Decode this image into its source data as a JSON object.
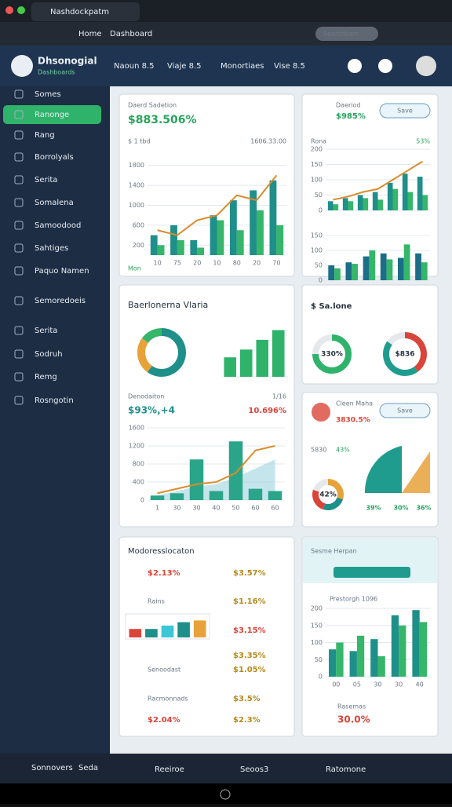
{
  "browser": {
    "tab_title": "Nashdockpatm",
    "nav": [
      "Home",
      "Dashboard"
    ],
    "search": "Searchbars"
  },
  "header": {
    "title": "Dhsonogial",
    "subtitle": "Dashboards",
    "tabs": [
      "Naoun 8.5",
      "Viaje 8.5",
      "Monortiaes",
      "Vise 8.5"
    ]
  },
  "sidebar": {
    "items": [
      "Somes",
      "Ranonge",
      "Rang",
      "Borrolyals",
      "Serita",
      "Somalena",
      "Samoodood",
      "Sahtiges",
      "Paquo Namen",
      "Semoredoeis",
      "Serita",
      "Sodruh",
      "Remg",
      "Rosngotin"
    ]
  },
  "cards": [
    {
      "title": "Daerd Sadetion",
      "value": "$883.506%",
      "meta_left": "$ 1 tbd",
      "meta_right": "1606.33.00",
      "footer": "Mon",
      "chart": {
        "type": "bar",
        "categories": [
          "10",
          "75",
          "20",
          "10",
          "80",
          "20",
          "70"
        ],
        "ylim": [
          0,
          2000
        ],
        "yticks": [
          200,
          600,
          1000,
          1400,
          1800
        ],
        "series": [
          {
            "type": "bar",
            "color": "#1f8f8a",
            "values": [
              400,
              600,
              300,
              800,
              1100,
              1300,
              1500
            ]
          },
          {
            "type": "bar",
            "color": "#35b66a",
            "values": [
              200,
              300,
              150,
              700,
              500,
              900,
              600
            ]
          },
          {
            "type": "line",
            "color": "#d98c2b",
            "values": [
              500,
              400,
              700,
              800,
              1200,
              1100,
              1600
            ]
          }
        ]
      }
    },
    {
      "title": "Daeriod",
      "value": "$985%",
      "button": "Save",
      "meta_left": "Rona",
      "meta_right": "53%",
      "chart": {
        "type": "bar",
        "ylim": [
          0,
          200
        ],
        "yticks": [
          0,
          50,
          100,
          150,
          200
        ],
        "series": [
          {
            "type": "bar",
            "color": "#1f8f8a",
            "values": [
              30,
              40,
              50,
              60,
              90,
              120,
              110
            ]
          },
          {
            "type": "bar",
            "color": "#35b66a",
            "values": [
              20,
              30,
              40,
              35,
              70,
              60,
              50
            ]
          },
          {
            "type": "line",
            "color": "#d98c2b",
            "values": [
              35,
              45,
              60,
              70,
              100,
              130,
              160
            ]
          }
        ]
      },
      "chart2": {
        "type": "bar",
        "ylim": [
          0,
          150
        ],
        "yticks": [
          0,
          50,
          100,
          150
        ],
        "series": [
          {
            "type": "bar",
            "color": "#1b6e86",
            "values": [
              50,
              60,
              80,
              90,
              75,
              90
            ]
          },
          {
            "type": "bar",
            "color": "#35b66a",
            "values": [
              40,
              55,
              100,
              70,
              120,
              60
            ]
          }
        ]
      }
    },
    {
      "title": "Baerlonerna Vlaria",
      "donut": {
        "values": [
          60,
          25,
          15
        ],
        "colors": [
          "#1f8f8a",
          "#e8a23a",
          "#35b66a"
        ]
      },
      "bars": {
        "ylim": [
          0,
          50
        ],
        "values": [
          20,
          28,
          38,
          48
        ],
        "color": "#2fb36b"
      },
      "sub_title": "Denodaiton",
      "sub_meta": "1/16",
      "value": "$93%,+4",
      "value_right": "10.696%",
      "chart": {
        "type": "line",
        "categories": [
          "1",
          "30",
          "30",
          "40",
          "50",
          "60",
          "60"
        ],
        "ylim": [
          0,
          1600
        ],
        "yticks": [
          0,
          400,
          800,
          1200,
          1600
        ],
        "series": [
          {
            "type": "area",
            "color": "#9fd3e0",
            "values": [
              100,
              200,
              300,
              350,
              500,
              700,
              900
            ]
          },
          {
            "type": "bar",
            "color": "#2aa58a",
            "values": [
              100,
              150,
              900,
              200,
              1300,
              250,
              200
            ]
          },
          {
            "type": "line",
            "color": "#d98c2b",
            "values": [
              150,
              250,
              350,
              400,
              600,
              1100,
              1200
            ]
          }
        ]
      }
    },
    {
      "title": "$ Sa.lone",
      "gauges": [
        {
          "label": "330%",
          "values": [
            75,
            25
          ],
          "colors": [
            "#2fb36b",
            "#e6e9ec"
          ]
        },
        {
          "label": "$836",
          "values": [
            40,
            45,
            15
          ],
          "colors": [
            "#d9453a",
            "#1f9c8e",
            "#e6e9ec"
          ]
        }
      ]
    },
    {
      "title": "Cleen Maha",
      "value": "3830.5%",
      "button": "Save",
      "meta_left": "5830",
      "meta_right": "43%",
      "donut": {
        "label": "42%",
        "values": [
          30,
          25,
          25,
          20
        ],
        "colors": [
          "#e8a23a",
          "#1f8f8a",
          "#d9453a",
          "#e6e9ec"
        ]
      },
      "labels": [
        "39%",
        "30%",
        "36%"
      ]
    },
    {
      "title": "Modoresslocaton",
      "rows": [
        [
          "$2.13%",
          "$3.57%"
        ],
        [
          "Rains",
          "$1.16%"
        ],
        [
          "$3.15%"
        ],
        [
          "Senoodast",
          "$3.35%",
          "$1.05%"
        ],
        [
          "Racmonnads",
          "$3.5%"
        ],
        [
          "$2.04%",
          "$2.3%"
        ]
      ],
      "bars": {
        "ylim": [
          0,
          25
        ],
        "values": [
          10,
          10,
          14,
          18,
          20
        ],
        "colors": [
          "#d9453a",
          "#1f8f8a",
          "#3cc6d6",
          "#1f8f8a",
          "#e8a23a"
        ]
      }
    },
    {
      "title": "Sesme Herpan",
      "meta": "Prestorgh 1096",
      "footer_label": "Rasemas",
      "footer_value": "30.0%",
      "chart": {
        "type": "bar",
        "categories": [
          "00",
          "05",
          "30",
          "30",
          "40"
        ],
        "ylim": [
          0,
          200
        ],
        "yticks": [
          0,
          50,
          100,
          150,
          200
        ],
        "series": [
          {
            "type": "bar",
            "color": "#1f8f8a",
            "values": [
              80,
              75,
              110,
              180,
              195
            ]
          },
          {
            "type": "bar",
            "color": "#35b66a",
            "values": [
              100,
              120,
              60,
              150,
              160
            ]
          }
        ]
      }
    }
  ],
  "footer": {
    "items": [
      "Sonnovers",
      "Seda",
      "Reeiroe",
      "Seoos3",
      "Ratomone"
    ]
  }
}
